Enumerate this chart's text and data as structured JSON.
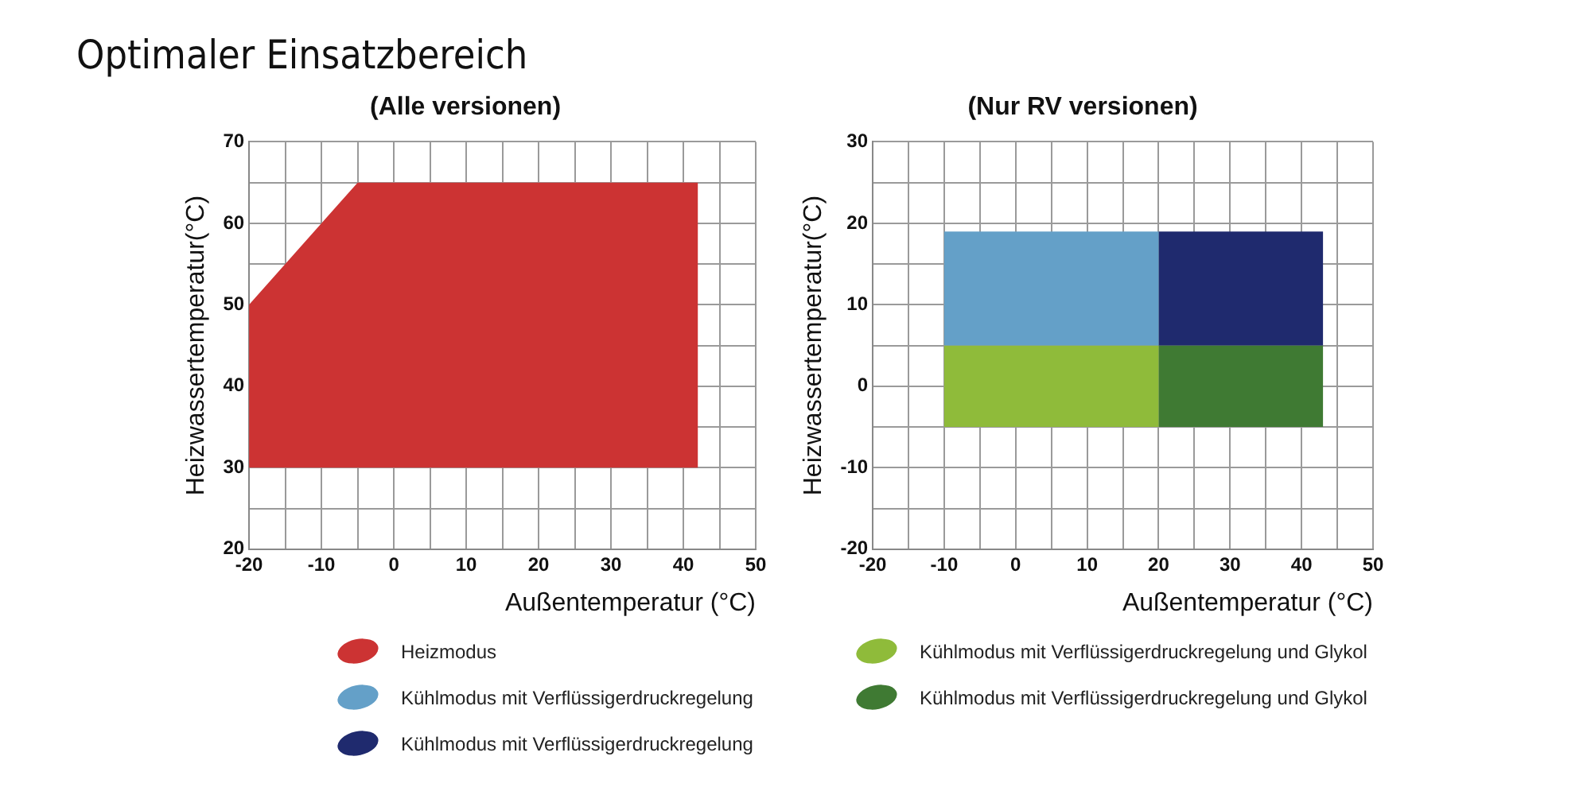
{
  "chart_data": [
    {
      "type": "area",
      "title": "(Alle versionen)",
      "xlabel": "Außentemperatur (°C)",
      "ylabel": "Heizwassertemperatur(°C)",
      "annotations": [
        "Optimaler Einsatzbereich"
      ],
      "xlim": [
        -20,
        50
      ],
      "xticks": [
        -20,
        {
          "value": -15,
          "label": null
        },
        -10,
        {
          "value": -5,
          "label": null
        },
        0,
        {
          "value": 5,
          "label": null
        },
        10,
        {
          "value": 15,
          "label": null
        },
        20,
        {
          "value": 25,
          "label": null
        },
        30,
        {
          "value": 35,
          "label": null
        },
        40,
        {
          "value": 45,
          "label": null
        },
        50
      ],
      "ylim": [
        20,
        70
      ],
      "yticks": [
        20,
        {
          "value": 25,
          "label": null
        },
        30,
        {
          "value": 35,
          "label": null
        },
        40,
        {
          "value": 45,
          "label": null
        },
        50,
        {
          "value": 55,
          "label": null
        },
        60,
        {
          "value": 65,
          "label": null
        },
        70
      ],
      "grid": true,
      "legend": "bottom",
      "series": [
        {
          "name": "Heizmodus",
          "color": "#cc3333",
          "x": [
            -20,
            -5,
            42,
            42,
            -20,
            -20
          ],
          "values": [
            50,
            65,
            65,
            30,
            30,
            50
          ]
        }
      ]
    },
    {
      "type": "area",
      "title": "(Nur RV versionen)",
      "xlabel": "Außentemperatur (°C)",
      "ylabel": "Heizwassertemperatur(°C)",
      "xlim": [
        -20,
        50
      ],
      "xticks": [
        -20,
        {
          "value": -15,
          "label": null
        },
        -10,
        {
          "value": -5,
          "label": null
        },
        0,
        {
          "value": 5,
          "label": null
        },
        10,
        {
          "value": 15,
          "label": null
        },
        20,
        {
          "value": 25,
          "label": null
        },
        30,
        {
          "value": 35,
          "label": null
        },
        40,
        {
          "value": 45,
          "label": null
        },
        50
      ],
      "ylim": [
        -20,
        30
      ],
      "yticks": [
        -20,
        {
          "value": -15,
          "label": null
        },
        -10,
        {
          "value": -5,
          "label": null
        },
        0,
        {
          "value": 5,
          "label": null
        },
        10,
        {
          "value": 15,
          "label": null
        },
        20,
        {
          "value": 25,
          "label": null
        },
        30
      ],
      "grid": true,
      "legend": "bottom",
      "series": [
        {
          "name": "Kühlmodus mit Verflüssigerdruckregelung",
          "color": "#64a0c8",
          "x": [
            -10,
            20,
            20,
            -10,
            -10
          ],
          "values": [
            19,
            19,
            5,
            5,
            19
          ]
        },
        {
          "name": "Kühlmodus mit Verflüssigerdruckregelung",
          "color": "#1f2a6e",
          "x": [
            20,
            43,
            43,
            20,
            20
          ],
          "values": [
            19,
            19,
            5,
            5,
            19
          ]
        },
        {
          "name": "Kühlmodus mit Verflüssigerdruckregelung und Glykol",
          "color": "#8fbb3a",
          "x": [
            -10,
            20,
            20,
            -10,
            -10
          ],
          "values": [
            5,
            5,
            -5,
            -5,
            5
          ]
        },
        {
          "name": "Kühlmodus mit Verflüssigerdruckregelung und Glykol",
          "color": "#3f7a33",
          "x": [
            20,
            43,
            43,
            20,
            20
          ],
          "values": [
            5,
            5,
            -5,
            -5,
            5
          ]
        }
      ]
    }
  ]
}
